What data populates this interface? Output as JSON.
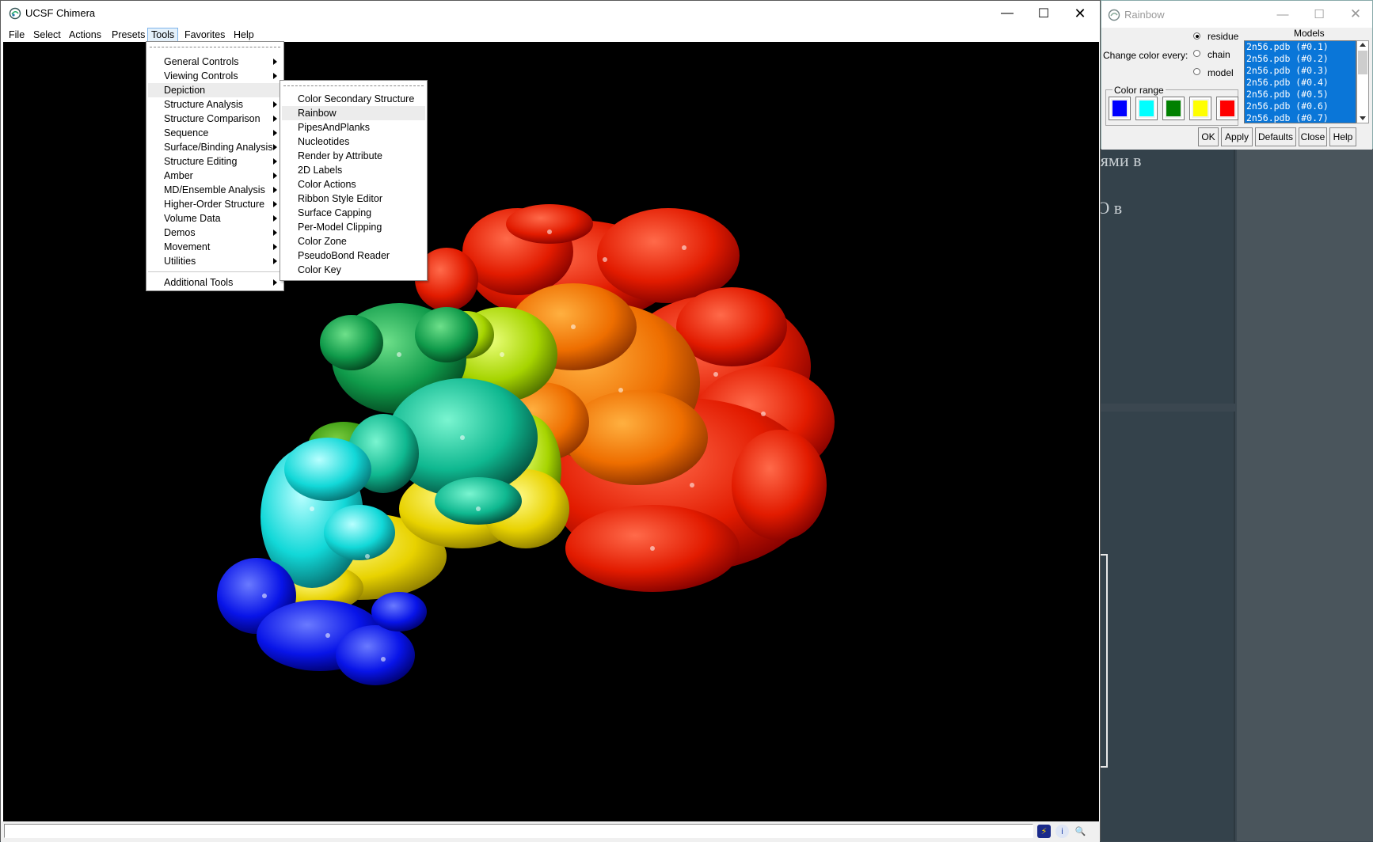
{
  "app": {
    "title": "UCSF Chimera",
    "menubar": [
      "File",
      "Select",
      "Actions",
      "Presets",
      "Tools",
      "Favorites",
      "Help"
    ],
    "active_menu": "Tools"
  },
  "tools_menu": {
    "items": [
      {
        "label": "General Controls",
        "submenu": true
      },
      {
        "label": "Viewing Controls",
        "submenu": true
      },
      {
        "label": "Depiction",
        "submenu": true
      },
      {
        "label": "Structure Analysis",
        "submenu": true
      },
      {
        "label": "Structure Comparison",
        "submenu": true
      },
      {
        "label": "Sequence",
        "submenu": true
      },
      {
        "label": "Surface/Binding Analysis",
        "submenu": true
      },
      {
        "label": "Structure Editing",
        "submenu": true
      },
      {
        "label": "Amber",
        "submenu": true
      },
      {
        "label": "MD/Ensemble Analysis",
        "submenu": true
      },
      {
        "label": "Higher-Order Structure",
        "submenu": true
      },
      {
        "label": "Volume Data",
        "submenu": true
      },
      {
        "label": "Demos",
        "submenu": true
      },
      {
        "label": "Movement",
        "submenu": true
      },
      {
        "label": "Utilities",
        "submenu": true
      }
    ],
    "additional": "Additional Tools",
    "highlighted": "Depiction"
  },
  "depiction_menu": {
    "items": [
      "Color Secondary Structure",
      "Rainbow",
      "PipesAndPlanks",
      "Nucleotides",
      "Render by Attribute",
      "2D Labels",
      "Color Actions",
      "Ribbon Style Editor",
      "Surface Capping",
      "Per-Model Clipping",
      "Color Zone",
      "PseudoBond Reader",
      "Color Key"
    ],
    "highlighted": "Rainbow"
  },
  "rainbow_dialog": {
    "title": "Rainbow",
    "change_label": "Change color every:",
    "options": [
      "residue",
      "chain",
      "model"
    ],
    "selected_option": "residue",
    "color_range_label": "Color range",
    "colors": [
      "#0000ff",
      "#00ffff",
      "#008000",
      "#ffff00",
      "#ff0000"
    ],
    "models_header": "Models",
    "models": [
      "2n56.pdb (#0.1)",
      "2n56.pdb (#0.2)",
      "2n56.pdb (#0.3)",
      "2n56.pdb (#0.4)",
      "2n56.pdb (#0.5)",
      "2n56.pdb (#0.6)",
      "2n56.pdb (#0.7)"
    ],
    "buttons": [
      "OK",
      "Apply",
      "Defaults",
      "Close",
      "Help"
    ]
  },
  "background_page": {
    "text_1": "иями в",
    "text_2": "IO в"
  },
  "status_icons": [
    "lightning-icon",
    "info-icon",
    "zoom-icon"
  ]
}
